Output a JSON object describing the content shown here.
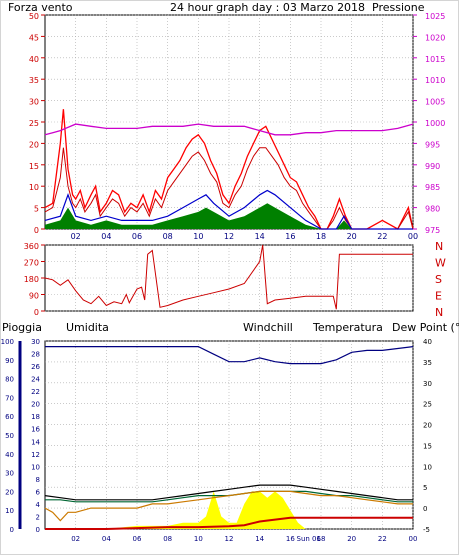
{
  "header": {
    "left_title": "Forza vento",
    "center_title": "24 hour graph day : 03 Marzo 2018",
    "right_title": "Pressione"
  },
  "colors": {
    "wind": "#cc0000",
    "gust": "#ff0000",
    "wind_avg": "#0000cc",
    "wind_green": "#008000",
    "pressure": "#cc00cc",
    "direction": "#cc0000",
    "humidity": "#000080",
    "windchill": "#cc7a00",
    "temperature": "#000000",
    "dewpoint": "#006633",
    "rain": "#cc0000",
    "rainrate": "#ffff00",
    "grid": "#999999"
  },
  "chart_data": [
    {
      "id": "wind_pressure",
      "type": "line",
      "ylabel_left": "Forza vento",
      "ylabel_right": "Pressione",
      "ylim_left": [
        0,
        50
      ],
      "ylim_right": [
        975,
        1025
      ],
      "yticks_left": [
        "50",
        "45",
        "40",
        "35",
        "30",
        "25",
        "20",
        "15",
        "10",
        "5",
        "0"
      ],
      "yticks_right": [
        "1025",
        "1020",
        "1015",
        "1010",
        "1005",
        "1000",
        "995",
        "990",
        "985",
        "980",
        "975"
      ],
      "xticks": [
        "02",
        "04",
        "06",
        "08",
        "10",
        "12",
        "14",
        "16",
        "18",
        "20",
        "22",
        "00"
      ],
      "grid": true,
      "series": [
        {
          "name": "Forza vento",
          "x": [
            0,
            0.5,
            1,
            1.2,
            1.5,
            1.8,
            2,
            2.3,
            2.6,
            3,
            3.3,
            3.6,
            4,
            4.4,
            4.8,
            5.2,
            5.6,
            6,
            6.4,
            6.8,
            7.2,
            7.6,
            8,
            8.4,
            8.8,
            9.2,
            9.6,
            10,
            10.4,
            10.8,
            11.2,
            11.6,
            12,
            12.4,
            12.8,
            13.2,
            13.6,
            14,
            14.4,
            14.8,
            15.2,
            15.6,
            16,
            16.4,
            16.8,
            17.2,
            17.6,
            18,
            18.4,
            18.8,
            19.2,
            19.6,
            20,
            21,
            22,
            23,
            23.7,
            24
          ],
          "y": [
            4,
            5,
            12,
            19,
            10,
            6,
            5,
            7,
            4,
            6,
            8,
            3,
            5,
            7,
            6,
            3,
            5,
            4,
            6,
            3,
            7,
            5,
            9,
            11,
            13,
            15,
            17,
            18,
            16,
            13,
            11,
            6,
            5,
            8,
            10,
            14,
            17,
            19,
            19,
            17,
            15,
            12,
            10,
            9,
            6,
            4,
            2,
            0,
            0,
            2,
            5,
            2,
            0,
            0,
            0,
            0,
            4,
            0
          ]
        },
        {
          "name": "gust",
          "x": [
            0,
            0.5,
            1,
            1.2,
            1.5,
            1.8,
            2,
            2.3,
            2.6,
            3,
            3.3,
            3.6,
            4,
            4.4,
            4.8,
            5.2,
            5.6,
            6,
            6.4,
            6.8,
            7.2,
            7.6,
            8,
            8.4,
            8.8,
            9.2,
            9.6,
            10,
            10.4,
            10.8,
            11.2,
            11.6,
            12,
            12.4,
            12.8,
            13.2,
            13.6,
            14,
            14.4,
            14.8,
            15.2,
            15.6,
            16,
            16.4,
            16.8,
            17.2,
            17.6,
            18,
            18.4,
            18.8,
            19.2,
            19.6,
            20,
            21,
            22,
            23,
            23.7,
            24
          ],
          "y": [
            5,
            6,
            20,
            28,
            14,
            8,
            7,
            9,
            5,
            8,
            10,
            4,
            6,
            9,
            8,
            4,
            6,
            5,
            8,
            4,
            9,
            7,
            12,
            14,
            16,
            19,
            21,
            22,
            20,
            16,
            13,
            8,
            6,
            10,
            13,
            17,
            20,
            23,
            24,
            21,
            18,
            15,
            12,
            11,
            8,
            5,
            3,
            0,
            0,
            3,
            7,
            3,
            0,
            0,
            2,
            0,
            5,
            0
          ]
        },
        {
          "name": "wind_avg",
          "x": [
            0,
            1,
            1.5,
            2,
            3,
            4,
            5,
            6,
            7,
            8,
            9,
            10,
            10.5,
            11,
            12,
            13,
            14,
            14.5,
            15,
            16,
            17,
            18,
            19,
            19.5,
            20,
            24
          ],
          "y": [
            2,
            3,
            8,
            3,
            2,
            3,
            2,
            2,
            2,
            3,
            5,
            7,
            8,
            6,
            3,
            5,
            8,
            9,
            8,
            5,
            2,
            0,
            0,
            3,
            0,
            0
          ]
        },
        {
          "name": "wind_green",
          "x": [
            0,
            1,
            1.5,
            2,
            3,
            4,
            5,
            6,
            7,
            8,
            9,
            10,
            10.5,
            11,
            12,
            13,
            14,
            14.5,
            15,
            16,
            17,
            18,
            19,
            19.5,
            20,
            24
          ],
          "y": [
            1,
            2,
            5,
            2,
            1,
            2,
            1,
            1,
            1,
            2,
            3,
            4,
            5,
            4,
            2,
            3,
            5,
            6,
            5,
            3,
            1,
            0,
            0,
            2,
            0,
            0
          ]
        },
        {
          "name": "Pressione",
          "x": [
            0,
            0.5,
            1,
            2,
            3,
            4,
            5,
            6,
            7,
            8,
            9,
            10,
            11,
            12,
            13,
            14,
            15,
            16,
            17,
            18,
            19,
            20,
            21,
            22,
            23,
            24
          ],
          "y": [
            997,
            997.5,
            998,
            999.5,
            999,
            998.5,
            998.5,
            998.5,
            999,
            999,
            999,
            999.5,
            999,
            999,
            999,
            998,
            997,
            997,
            997.5,
            997.5,
            998,
            998,
            998,
            998,
            998.5,
            999.5
          ]
        }
      ]
    },
    {
      "id": "direction",
      "type": "line",
      "ylim": [
        0,
        360
      ],
      "yticks": [
        "360",
        "270",
        "180",
        "90",
        "0"
      ],
      "yticks_right": [
        "N",
        "W",
        "S",
        "E",
        "N"
      ],
      "grid": true,
      "series": [
        {
          "name": "direzione",
          "x": [
            0,
            0.5,
            1,
            1.5,
            2,
            2.5,
            3,
            3.5,
            4,
            4.5,
            5,
            5.3,
            5.5,
            6,
            6.3,
            6.5,
            6.7,
            7,
            7.5,
            8,
            9,
            10,
            11,
            12,
            13,
            14,
            14.2,
            14.5,
            15,
            16,
            17,
            18,
            18.8,
            19,
            19.2,
            24
          ],
          "y": [
            180,
            170,
            140,
            170,
            110,
            60,
            40,
            80,
            30,
            50,
            40,
            90,
            45,
            120,
            130,
            60,
            310,
            330,
            20,
            30,
            60,
            80,
            100,
            120,
            150,
            270,
            360,
            40,
            60,
            70,
            80,
            80,
            80,
            10,
            310,
            310
          ]
        }
      ]
    },
    {
      "id": "temp_humidity",
      "type": "line",
      "labels": [
        "Pioggia",
        "Umidita",
        "Windchill",
        "Temperatura",
        "Dew Point (°C"
      ],
      "yticks_left_rain": [
        "100",
        "90",
        "80",
        "70",
        "60",
        "50",
        "40",
        "30",
        "20",
        "10",
        "0"
      ],
      "yticks_left_hum": [
        "30",
        "28",
        "26",
        "24",
        "22",
        "20",
        "18",
        "16",
        "14",
        "12",
        "10",
        "8",
        "6",
        "4",
        "2",
        "0"
      ],
      "yticks_right": [
        "40",
        "35",
        "30",
        "25",
        "20",
        "15",
        "10",
        "5",
        "0",
        "-5"
      ],
      "ylim_temp": [
        -5,
        40
      ],
      "ylim_hum": [
        0,
        100
      ],
      "xticks": [
        "02",
        "04",
        "06",
        "08",
        "10",
        "12",
        "14",
        "16",
        "Sun 06",
        "18",
        "20",
        "22",
        "00"
      ],
      "grid": true,
      "series": [
        {
          "name": "Umidita",
          "x": [
            0,
            1,
            2,
            3,
            4,
            5,
            6,
            7,
            8,
            9,
            10,
            11,
            12,
            13,
            14,
            15,
            16,
            17,
            18,
            19,
            20,
            21,
            22,
            23,
            24
          ],
          "y": [
            97,
            97,
            97,
            97,
            97,
            97,
            97,
            97,
            97,
            97,
            97,
            93,
            89,
            89,
            91,
            89,
            88,
            88,
            88,
            90,
            94,
            95,
            95,
            96,
            97
          ]
        },
        {
          "name": "Temperatura",
          "x": [
            0,
            1,
            2,
            3,
            4,
            5,
            6,
            7,
            8,
            9,
            10,
            11,
            12,
            13,
            14,
            15,
            16,
            17,
            18,
            19,
            20,
            21,
            22,
            23,
            24
          ],
          "y": [
            3,
            2.5,
            2,
            2,
            2,
            2,
            2,
            2,
            2.5,
            3,
            3.5,
            4,
            4.5,
            5,
            5.5,
            5.5,
            5.5,
            5,
            4.5,
            4,
            3.5,
            3,
            2.5,
            2,
            2
          ]
        },
        {
          "name": "Windchill",
          "x": [
            0,
            0.5,
            1,
            1.5,
            2,
            3,
            4,
            5,
            6,
            7,
            8,
            9,
            10,
            11,
            12,
            13,
            14,
            15,
            16,
            17,
            18,
            19,
            20,
            21,
            22,
            23,
            24
          ],
          "y": [
            0,
            -1,
            -3,
            -1,
            -1,
            0,
            0,
            0,
            0,
            1,
            1,
            1.5,
            2,
            2.5,
            3,
            3.5,
            4,
            4,
            4,
            3.5,
            3,
            3,
            2.5,
            2,
            1.5,
            1,
            1
          ]
        },
        {
          "name": "Dew Point",
          "x": [
            0,
            1,
            2,
            3,
            4,
            5,
            6,
            7,
            8,
            9,
            10,
            11,
            12,
            13,
            14,
            15,
            16,
            17,
            18,
            19,
            20,
            21,
            22,
            23,
            24
          ],
          "y": [
            2,
            2,
            1.5,
            1.5,
            1.5,
            1.5,
            1.5,
            1.5,
            2,
            2.5,
            3,
            3,
            3,
            3.5,
            4,
            4,
            4,
            4,
            3.5,
            3,
            3,
            2.5,
            2,
            1.5,
            1.5
          ]
        },
        {
          "name": "Pioggia",
          "x": [
            0,
            4,
            6,
            8,
            10,
            12,
            13,
            14,
            16,
            18,
            20,
            22,
            24
          ],
          "y": [
            0,
            0,
            0.5,
            1,
            1,
            1.5,
            2,
            4,
            6,
            6,
            6,
            6,
            6
          ]
        },
        {
          "name": "rain_rate",
          "x": [
            0,
            4,
            6,
            8,
            9,
            10,
            10.5,
            11,
            11.5,
            12,
            12.5,
            13,
            13.5,
            14,
            14.5,
            15,
            15.5,
            16,
            16.5,
            17,
            18,
            20,
            24
          ],
          "y": [
            0,
            0,
            0.5,
            0.5,
            1,
            1,
            2,
            6,
            2,
            1,
            1,
            4,
            6,
            6,
            5,
            6,
            5,
            3,
            1,
            0,
            0,
            0,
            0
          ]
        }
      ]
    }
  ]
}
